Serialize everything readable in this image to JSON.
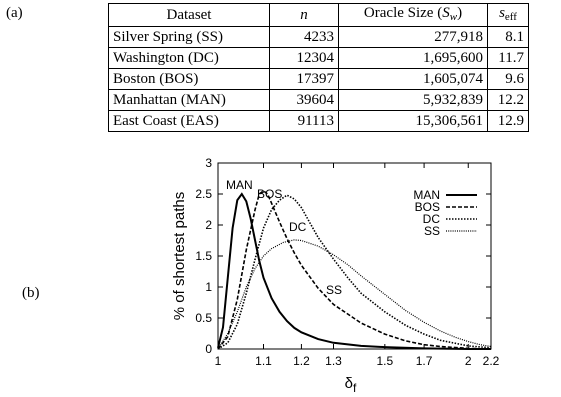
{
  "panel_labels": {
    "a": "(a)",
    "b": "(b)"
  },
  "table": {
    "headers": {
      "dataset": "Dataset",
      "n": "n",
      "oracle_prefix": "Oracle Size (",
      "oracle_var": "S",
      "oracle_sub": "w",
      "oracle_suffix": ")",
      "s_main": "s",
      "s_sub": "eff"
    },
    "rows": [
      {
        "dataset": "Silver Spring (SS)",
        "n": "4233",
        "oracle": "277,918",
        "seff": "8.1"
      },
      {
        "dataset": "Washington (DC)",
        "n": "12304",
        "oracle": "1,695,600",
        "seff": "11.7"
      },
      {
        "dataset": "Boston (BOS)",
        "n": "17397",
        "oracle": "1,605,074",
        "seff": "9.6"
      },
      {
        "dataset": "Manhattan (MAN)",
        "n": "39604",
        "oracle": "5,932,839",
        "seff": "12.2"
      },
      {
        "dataset": "East Coast (EAS)",
        "n": "91113",
        "oracle": "15,306,561",
        "seff": "12.9"
      }
    ]
  },
  "chart_data": {
    "type": "line",
    "ylabel": "% of shortest paths",
    "xlabel_main": "δ",
    "xlabel_sub": "f",
    "x_ticks": [
      "1",
      "1.1",
      "1.2",
      "1.3",
      "1.5",
      "1.7",
      "2",
      "2.2"
    ],
    "y_ticks": [
      "0",
      "0.5",
      "1",
      "1.5",
      "2",
      "2.5",
      "3"
    ],
    "xlim": [
      1,
      2.2
    ],
    "ylim": [
      0,
      3
    ],
    "x_scale": "reciprocal",
    "legend_position": "top-right",
    "series": [
      {
        "name": "MAN",
        "style": "solid",
        "annotation": "MAN",
        "points": [
          [
            1.0,
            0.02
          ],
          [
            1.01,
            0.35
          ],
          [
            1.02,
            1.15
          ],
          [
            1.03,
            1.95
          ],
          [
            1.04,
            2.4
          ],
          [
            1.05,
            2.5
          ],
          [
            1.06,
            2.38
          ],
          [
            1.07,
            2.1
          ],
          [
            1.08,
            1.75
          ],
          [
            1.09,
            1.42
          ],
          [
            1.1,
            1.15
          ],
          [
            1.12,
            0.82
          ],
          [
            1.14,
            0.6
          ],
          [
            1.16,
            0.45
          ],
          [
            1.18,
            0.34
          ],
          [
            1.2,
            0.27
          ],
          [
            1.25,
            0.16
          ],
          [
            1.3,
            0.1
          ],
          [
            1.4,
            0.05
          ],
          [
            1.5,
            0.03
          ],
          [
            1.7,
            0.01
          ],
          [
            2.0,
            0.0
          ],
          [
            2.2,
            0.0
          ]
        ]
      },
      {
        "name": "BOS",
        "style": "dashed",
        "annotation": "BOS",
        "points": [
          [
            1.0,
            0.0
          ],
          [
            1.02,
            0.2
          ],
          [
            1.04,
            0.8
          ],
          [
            1.06,
            1.6
          ],
          [
            1.08,
            2.25
          ],
          [
            1.09,
            2.5
          ],
          [
            1.1,
            2.55
          ],
          [
            1.11,
            2.5
          ],
          [
            1.12,
            2.35
          ],
          [
            1.14,
            2.05
          ],
          [
            1.16,
            1.78
          ],
          [
            1.18,
            1.55
          ],
          [
            1.2,
            1.35
          ],
          [
            1.25,
            0.98
          ],
          [
            1.3,
            0.72
          ],
          [
            1.4,
            0.42
          ],
          [
            1.5,
            0.24
          ],
          [
            1.6,
            0.13
          ],
          [
            1.7,
            0.07
          ],
          [
            1.8,
            0.04
          ],
          [
            2.0,
            0.01
          ],
          [
            2.2,
            0.0
          ]
        ]
      },
      {
        "name": "DC",
        "style": "dotted",
        "annotation": "DC",
        "points": [
          [
            1.0,
            0.0
          ],
          [
            1.02,
            0.1
          ],
          [
            1.04,
            0.4
          ],
          [
            1.06,
            0.9
          ],
          [
            1.08,
            1.45
          ],
          [
            1.1,
            1.95
          ],
          [
            1.12,
            2.25
          ],
          [
            1.14,
            2.4
          ],
          [
            1.16,
            2.48
          ],
          [
            1.18,
            2.42
          ],
          [
            1.2,
            2.28
          ],
          [
            1.22,
            2.08
          ],
          [
            1.25,
            1.8
          ],
          [
            1.3,
            1.45
          ],
          [
            1.35,
            1.15
          ],
          [
            1.4,
            0.9
          ],
          [
            1.5,
            0.6
          ],
          [
            1.6,
            0.38
          ],
          [
            1.7,
            0.24
          ],
          [
            1.8,
            0.14
          ],
          [
            2.0,
            0.05
          ],
          [
            2.2,
            0.02
          ]
        ]
      },
      {
        "name": "SS",
        "style": "fine-dotted",
        "annotation": "SS",
        "points": [
          [
            1.0,
            0.0
          ],
          [
            1.02,
            0.25
          ],
          [
            1.04,
            0.6
          ],
          [
            1.06,
            1.0
          ],
          [
            1.08,
            1.3
          ],
          [
            1.1,
            1.5
          ],
          [
            1.12,
            1.62
          ],
          [
            1.15,
            1.72
          ],
          [
            1.18,
            1.76
          ],
          [
            1.2,
            1.75
          ],
          [
            1.25,
            1.66
          ],
          [
            1.3,
            1.52
          ],
          [
            1.35,
            1.36
          ],
          [
            1.4,
            1.18
          ],
          [
            1.5,
            0.88
          ],
          [
            1.6,
            0.62
          ],
          [
            1.7,
            0.43
          ],
          [
            1.8,
            0.29
          ],
          [
            1.9,
            0.19
          ],
          [
            2.0,
            0.12
          ],
          [
            2.1,
            0.07
          ],
          [
            2.2,
            0.04
          ]
        ]
      }
    ]
  }
}
